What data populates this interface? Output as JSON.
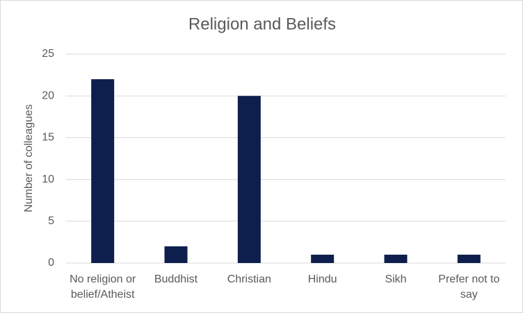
{
  "chart_data": {
    "type": "bar",
    "title": "Religion and Beliefs",
    "y_label": "Number of colleagues",
    "categories": [
      "No religion or belief/Atheist",
      "Buddhist",
      "Christian",
      "Hindu",
      "Sikh",
      "Prefer not to say"
    ],
    "values": [
      22,
      2,
      20,
      1,
      1,
      1
    ],
    "color": "#0e1f4d",
    "ylim": [
      0,
      25
    ],
    "yticks": [
      0,
      5,
      10,
      15,
      20,
      25
    ],
    "grid": true
  }
}
